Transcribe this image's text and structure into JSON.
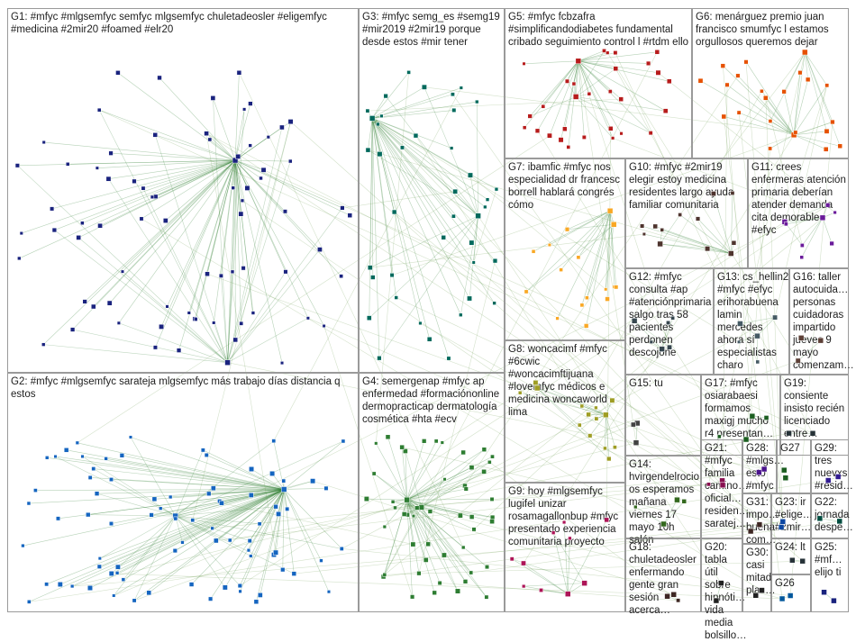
{
  "groups": [
    {
      "id": "G1",
      "label": "G1: #mfyc #mlgsemfyc semfyc mlgsemfyc chuletadeosler #eligemfyc #medicina #2mir20 #foamed #elr20",
      "color": "#1a237e"
    },
    {
      "id": "G2",
      "label": "G2: #mfyc #mlgsemfyc sarateja mlgsemfyc más trabajo días distancia q estos",
      "color": "#1565c0"
    },
    {
      "id": "G3",
      "label": "G3: #mfyc semg_es #semg19 #mir2019 #2mir19 porque desde estos #mir tener",
      "color": "#00695c"
    },
    {
      "id": "G4",
      "label": "G4: semergenap #mfyc ap enfermedad #formaciónonline dermopracticap dermatología cosmética #hta #ecv",
      "color": "#2e7d32"
    },
    {
      "id": "G5",
      "label": "G5: #mfyc fcbzafra #simplificandodiabetes fundamental cribado seguimiento control l #rtdm ello",
      "color": "#b71c1c"
    },
    {
      "id": "G6",
      "label": "G6: menárguez premio juan francisco smumfyc l estamos orgullosos queremos dejar",
      "color": "#e65100"
    },
    {
      "id": "G7",
      "label": "G7: ibamfic #mfyc nos especialidad dr francesc borrell hablará congrés cómo",
      "color": "#f9a825"
    },
    {
      "id": "G8",
      "label": "G8: woncacimf #mfyc #6cwic #woncacimftijuana #lovemfyc médicos e medicina woncaworld lima",
      "color": "#9e9d24"
    },
    {
      "id": "G9",
      "label": "G9: hoy #mlgsemfyc lugifel unizar rosamagallonbup #mfyc presentado experiencia comunitaria proyecto",
      "color": "#ad1457"
    },
    {
      "id": "G10",
      "label": "G10: #mfyc #2mir19 elegir estoy medicina residentes largo ayuda familiar comunitaria",
      "color": "#4e342e"
    },
    {
      "id": "G11",
      "label": "G11: crees enfermeras atención primaria deberían atender demanda cita demorable #efyc",
      "color": "#6a1b9a"
    },
    {
      "id": "G12",
      "label": "G12: #mfyc consulta #ap #atenciónprimaria salgo tras 58 pacientes perdonen descojone",
      "color": "#37474f"
    },
    {
      "id": "G13",
      "label": "G13: cs_hellin2 #mfyc #efyc erihorabuena lamin mercedes ahora sí especialistas charo",
      "color": "#455a64"
    },
    {
      "id": "G14",
      "label": "G14: hvirgendelrocio os esperamos mañana viernes 17 mayo 10h salón",
      "color": "#33691e"
    },
    {
      "id": "G15",
      "label": "G15: tu",
      "color": "#424242"
    },
    {
      "id": "G16",
      "label": "G16: taller autocuida… personas cuidadoras impartido jueves 9 mayo comenzam…",
      "color": "#5d4037"
    },
    {
      "id": "G17",
      "label": "G17: #mfyc osiarabaesi formamos maxigj mucho r4 presentan…",
      "color": "#1b5e20"
    },
    {
      "id": "G18",
      "label": "G18: chuletadeosler enfermando gente gran sesión acerca…",
      "color": "#3e2723"
    },
    {
      "id": "G19",
      "label": "G19: consiente insisto recién licenciado entre…",
      "color": "#263238"
    },
    {
      "id": "G20",
      "label": "G20: tabla útil sobre hipnóti… vida media bolsillo…",
      "color": "#212121"
    },
    {
      "id": "G21",
      "label": "G21: #mfyc familia camino… oficial… residen… saratej…",
      "color": "#880e4f"
    },
    {
      "id": "G22",
      "label": "G22: jornada despe…",
      "color": "#004d40"
    },
    {
      "id": "G23",
      "label": "G23: ir #elige… #2mir…",
      "color": "#0d47a1"
    },
    {
      "id": "G24",
      "label": "G24: lt",
      "color": "#263238"
    },
    {
      "id": "G25",
      "label": "G25: #mf… elijo ti",
      "color": "#1a237e"
    },
    {
      "id": "G26",
      "label": "G26",
      "color": "#01579b"
    },
    {
      "id": "G27",
      "label": "G27",
      "color": "#1b5e20"
    },
    {
      "id": "G28",
      "label": "G28: #mlgs… esto #mfyc",
      "color": "#4a148c"
    },
    {
      "id": "G29",
      "label": "G29: tres nuevxs #resid…",
      "color": "#311b92"
    },
    {
      "id": "G30",
      "label": "G30: casi mitad plaz…",
      "color": "#212121"
    },
    {
      "id": "G31",
      "label": "G31: impo… buena com…",
      "color": "#3e2723"
    }
  ]
}
